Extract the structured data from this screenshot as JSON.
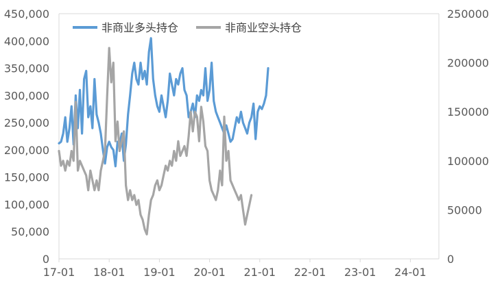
{
  "chart_data": {
    "type": "line",
    "title": "",
    "legend_position": "top-left",
    "grid": false,
    "x_ticks": [
      "17-01",
      "18-01",
      "19-01",
      "20-01",
      "21-01",
      "22-01",
      "23-01",
      "24-01"
    ],
    "y_left": {
      "min": 0,
      "max": 450000,
      "ticks": [
        0,
        50000,
        100000,
        150000,
        200000,
        250000,
        300000,
        350000,
        400000,
        450000
      ],
      "tick_labels": [
        "0",
        "50,000",
        "100,000",
        "150,000",
        "200,000",
        "250,000",
        "300,000",
        "350,000",
        "400,000",
        "450,000"
      ]
    },
    "y_right": {
      "min": 0,
      "max": 250000,
      "ticks": [
        0,
        50000,
        100000,
        150000,
        200000,
        250000
      ],
      "tick_labels": [
        "0",
        "50000",
        "100000",
        "150000",
        "200000",
        "250000"
      ]
    },
    "series": [
      {
        "name": "非商业多头持仓",
        "axis": "left",
        "color": "#5b9bd5",
        "x_start": "2017-01",
        "x_step_months": 0.5,
        "values": [
          212000,
          215000,
          230000,
          260000,
          215000,
          240000,
          280000,
          210000,
          300000,
          240000,
          310000,
          230000,
          330000,
          345000,
          260000,
          280000,
          240000,
          330000,
          265000,
          250000,
          230000,
          200000,
          175000,
          205000,
          215000,
          205000,
          200000,
          170000,
          215000,
          210000,
          230000,
          180000,
          210000,
          265000,
          300000,
          340000,
          360000,
          330000,
          320000,
          360000,
          330000,
          345000,
          320000,
          380000,
          405000,
          330000,
          300000,
          280000,
          270000,
          300000,
          280000,
          260000,
          290000,
          340000,
          320000,
          300000,
          330000,
          320000,
          340000,
          350000,
          310000,
          300000,
          260000,
          270000,
          285000,
          260000,
          300000,
          290000,
          310000,
          300000,
          350000,
          290000,
          310000,
          360000,
          290000,
          270000,
          260000,
          250000,
          240000,
          230000,
          245000,
          230000,
          215000,
          220000,
          240000,
          260000,
          250000,
          270000,
          250000,
          240000,
          230000,
          250000,
          260000,
          285000,
          220000,
          270000,
          280000,
          275000,
          285000,
          300000,
          350000
        ]
      },
      {
        "name": "非商业空头持仓",
        "axis": "right",
        "color": "#a5a5a5",
        "x_start": "2017-01",
        "x_step_months": 0.5,
        "values": [
          110000,
          95000,
          100000,
          90000,
          100000,
          95000,
          110000,
          100000,
          160000,
          90000,
          100000,
          95000,
          90000,
          85000,
          70000,
          90000,
          80000,
          70000,
          80000,
          70000,
          90000,
          100000,
          110000,
          165000,
          215000,
          180000,
          200000,
          120000,
          140000,
          110000,
          120000,
          130000,
          75000,
          60000,
          70000,
          60000,
          65000,
          55000,
          60000,
          45000,
          40000,
          30000,
          25000,
          45000,
          60000,
          65000,
          75000,
          80000,
          70000,
          75000,
          85000,
          95000,
          90000,
          100000,
          95000,
          110000,
          100000,
          120000,
          105000,
          110000,
          115000,
          105000,
          125000,
          150000,
          130000,
          150000,
          145000,
          120000,
          155000,
          140000,
          115000,
          110000,
          80000,
          70000,
          65000,
          60000,
          70000,
          90000,
          75000,
          145000,
          100000,
          110000,
          80000,
          75000,
          70000,
          65000,
          60000,
          65000,
          50000,
          35000,
          45000,
          55000,
          65000
        ]
      }
    ]
  }
}
